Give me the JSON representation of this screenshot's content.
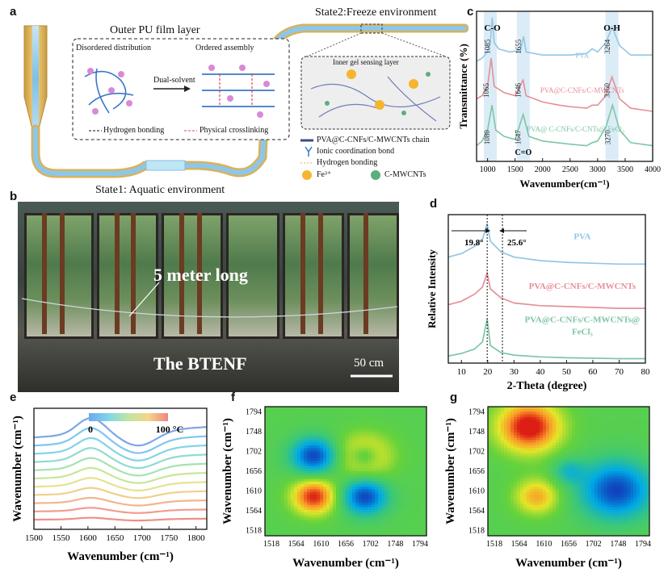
{
  "panels": {
    "a": "a",
    "b": "b",
    "c": "c",
    "d": "d",
    "e": "e",
    "f": "f",
    "g": "g"
  },
  "panel_a": {
    "outer_layer": "Outer PU film layer",
    "state2": "State2:Freeze environment",
    "state1": "State1: Aquatic environment",
    "disordered": "Disordered distribution",
    "ordered": "Ordered assembly",
    "dual1": "Dual-solvent",
    "dual2": "diffusion",
    "hbond_legend": "Hydrogen bonding",
    "phys_legend": "Physical crosslinking",
    "inner_gel": "Inner gel sensing layer",
    "legend": {
      "chain": "PVA@C-CNFs/C-MWCNTs chain",
      "ionic": "Ionic coordination bond",
      "hbond": "Hydrogen bonding",
      "fe": "Fe³⁺",
      "cmwcnts": "C-MWCNTs"
    },
    "colors": {
      "fiber": "#8ec6e8",
      "shell": "#e6c170",
      "fe": "#f5b62e",
      "cnt": "#5cae7e",
      "pink": "#d88ad8"
    }
  },
  "panel_b": {
    "label_5m": "5 meter long",
    "label_btenf": "The BTENF",
    "scale": "50 cm"
  },
  "chart_data": [
    {
      "id": "c",
      "type": "line",
      "xlabel": "Wavenumber(cm⁻¹)",
      "ylabel": "Transmittance (%)",
      "xlim": [
        800,
        4000
      ],
      "xticks": [
        1000,
        1500,
        2000,
        2500,
        3000,
        3500,
        4000
      ],
      "band_labels": [
        "C-O",
        "O-H",
        "C=O"
      ],
      "series": [
        {
          "name": "PVA",
          "color": "#93c6e6",
          "x": [
            800,
            900,
            1000,
            1050,
            1085,
            1120,
            1200,
            1400,
            1600,
            1655,
            1700,
            2000,
            2500,
            2800,
            2900,
            3000,
            3150,
            3264,
            3400,
            3600,
            4000
          ],
          "y": [
            3.0,
            3.1,
            3.3,
            3.6,
            4.4,
            3.6,
            3.4,
            3.3,
            3.35,
            3.8,
            3.3,
            3.2,
            3.2,
            3.25,
            3.4,
            3.3,
            3.6,
            4.1,
            3.5,
            3.2,
            3.2
          ]
        },
        {
          "name": "PVA@C-CNFs/C-MWCNTs",
          "color": "#e58f98",
          "x": [
            800,
            900,
            1000,
            1065,
            1120,
            1300,
            1500,
            1646,
            1700,
            2000,
            2300,
            2500,
            2800,
            2900,
            3000,
            3150,
            3260,
            3400,
            3600,
            4000
          ],
          "y": [
            1.8,
            1.9,
            2.2,
            3.1,
            2.2,
            2.0,
            1.9,
            2.4,
            1.9,
            1.7,
            1.6,
            1.55,
            1.5,
            1.6,
            1.6,
            1.9,
            2.5,
            1.8,
            1.5,
            1.4
          ]
        },
        {
          "name": "PVA@ C-CNFs/C-CNTs@ FeCl₃",
          "color": "#7fc6a5",
          "x": [
            800,
            900,
            1000,
            1080,
            1150,
            1300,
            1500,
            1647,
            1750,
            2000,
            2500,
            2800,
            2900,
            3000,
            3150,
            3270,
            3400,
            3600,
            4000
          ],
          "y": [
            0.3,
            0.45,
            0.8,
            1.6,
            0.8,
            0.6,
            0.5,
            1.3,
            0.6,
            0.45,
            0.35,
            0.3,
            0.4,
            0.45,
            0.9,
            1.6,
            0.8,
            0.4,
            0.3
          ]
        }
      ],
      "peak_labels": [
        {
          "text": "1085",
          "x": 1085,
          "series": 0
        },
        {
          "text": "1655",
          "x": 1655,
          "series": 0
        },
        {
          "text": "3264",
          "x": 3264,
          "series": 0
        },
        {
          "text": "1065",
          "x": 1065,
          "series": 1
        },
        {
          "text": "1646",
          "x": 1646,
          "series": 1
        },
        {
          "text": "3260",
          "x": 3260,
          "series": 1
        },
        {
          "text": "1080",
          "x": 1080,
          "series": 2
        },
        {
          "text": "1647",
          "x": 1647,
          "series": 2
        },
        {
          "text": "3270",
          "x": 3270,
          "series": 2
        }
      ],
      "bands_x": [
        1050,
        1650,
        3260
      ]
    },
    {
      "id": "d",
      "type": "line",
      "xlabel": "2-Theta (degree)",
      "ylabel": "Relative Intensity",
      "xlim": [
        5,
        80
      ],
      "xticks": [
        10,
        20,
        30,
        40,
        50,
        60,
        70,
        80
      ],
      "annotations": [
        "19.8°",
        "25.6°"
      ],
      "ref_lines_x": [
        19.8,
        25.6
      ],
      "series": [
        {
          "name": "PVA",
          "color": "#93c6e6",
          "x": [
            5,
            10,
            15,
            18,
            19.8,
            21,
            25,
            30,
            40,
            50,
            60,
            70,
            80
          ],
          "y": [
            6.0,
            6.2,
            6.6,
            7.0,
            7.9,
            6.9,
            6.3,
            6.0,
            5.8,
            5.7,
            5.65,
            5.6,
            5.6
          ]
        },
        {
          "name": "PVA@C-CNFs/C-MWCNTs",
          "color": "#e58f98",
          "x": [
            5,
            10,
            15,
            18,
            19.8,
            21,
            25,
            30,
            40,
            50,
            60,
            70,
            80
          ],
          "y": [
            3.3,
            3.5,
            3.9,
            4.3,
            5.1,
            4.2,
            3.7,
            3.4,
            3.25,
            3.2,
            3.15,
            3.1,
            3.1
          ]
        },
        {
          "name": "PVA@C-CNFs/C-MWCNTs@ FeCl₃",
          "color": "#7fc6a5",
          "x": [
            5,
            10,
            15,
            18,
            19.8,
            21,
            25,
            30,
            40,
            50,
            60,
            70,
            80
          ],
          "y": [
            0.4,
            0.55,
            0.8,
            1.2,
            2.5,
            1.0,
            0.6,
            0.45,
            0.35,
            0.3,
            0.28,
            0.25,
            0.25
          ]
        }
      ]
    },
    {
      "id": "e",
      "type": "line",
      "xlabel": "Wavenumber (cm⁻¹)",
      "ylabel": "Wavenumber (cm⁻¹)",
      "xlim": [
        1500,
        1820
      ],
      "xticks": [
        1500,
        1550,
        1600,
        1650,
        1700,
        1750,
        1800
      ],
      "colorbar": {
        "min_label": "0",
        "max_label": "100 °C"
      },
      "series_count": 11
    },
    {
      "id": "f",
      "type": "heatmap",
      "xlabel": "Wavenumber (cm⁻¹)",
      "ylabel": "Wavenumber (cm⁻¹)",
      "ticks": [
        "1518",
        "1564",
        "1610",
        "1656",
        "1702",
        "1748",
        "1794"
      ]
    },
    {
      "id": "g",
      "type": "heatmap",
      "xlabel": "Wavenumber (cm⁻¹)",
      "ylabel": "Wavenumber (cm⁻¹)",
      "ticks": [
        "1518",
        "1564",
        "1610",
        "1656",
        "1702",
        "1748",
        "1794"
      ]
    }
  ]
}
